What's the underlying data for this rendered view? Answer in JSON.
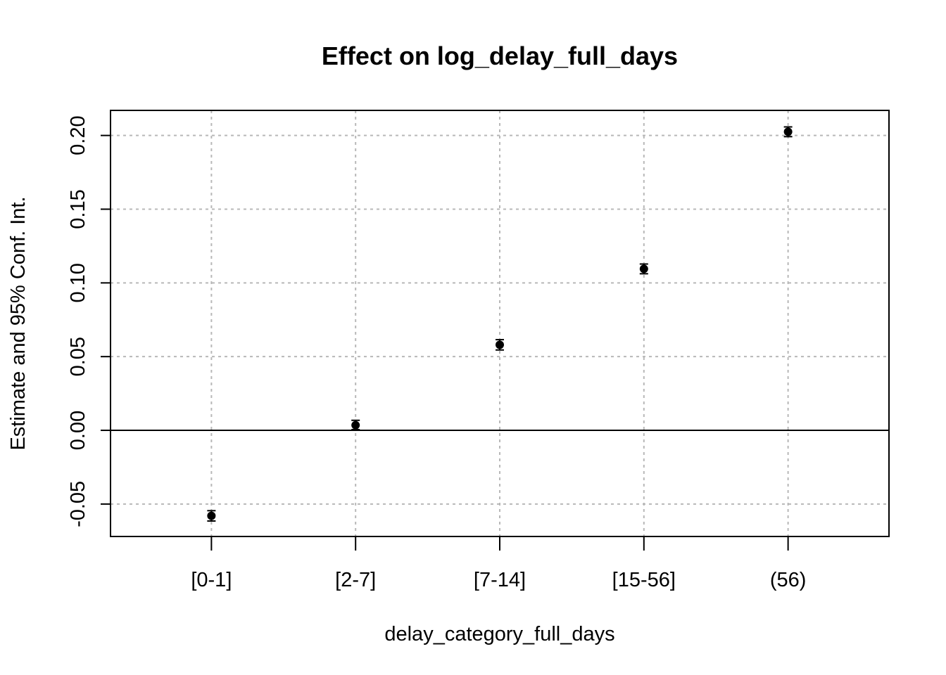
{
  "chart_data": {
    "type": "scatter",
    "title": "Effect on log_delay_full_days",
    "xlabel": "delay_category_full_days",
    "ylabel": "Estimate and 95% Conf. Int.",
    "categories": [
      "[0-1]",
      "[2-7]",
      "[7-14]",
      "[15-56]",
      "(56)"
    ],
    "estimates": [
      -0.058,
      0.0035,
      0.058,
      0.1095,
      0.2025
    ],
    "ci_lower": [
      -0.0615,
      0.0005,
      0.0545,
      0.1062,
      0.1992
    ],
    "ci_upper": [
      -0.0545,
      0.0068,
      0.0615,
      0.1128,
      0.2058
    ],
    "yticks": [
      -0.05,
      0.0,
      0.05,
      0.1,
      0.15,
      0.2
    ],
    "ytick_labels": [
      "-0.05",
      "0.00",
      "0.05",
      "0.10",
      "0.15",
      "0.20"
    ],
    "ylim": [
      -0.072,
      0.217
    ],
    "xlim": [
      0.3,
      5.7
    ],
    "grid": true,
    "reference_line_y": 0
  }
}
